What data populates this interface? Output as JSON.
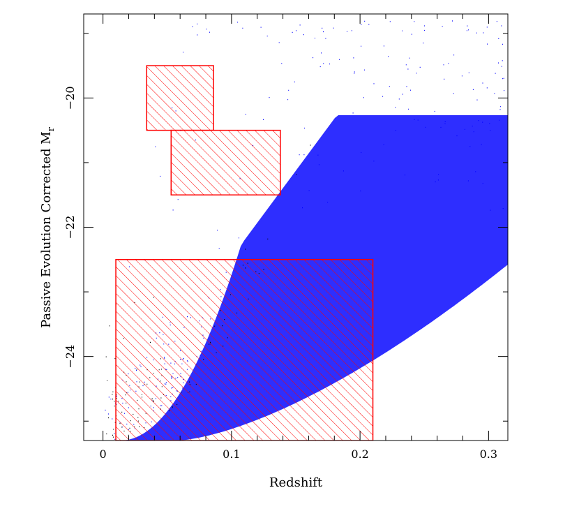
{
  "chart_data": {
    "type": "scatter",
    "title": "",
    "xlabel": "Redshift",
    "ylabel_main": "Passive Evolution Corrected M",
    "ylabel_sub": "r",
    "xlim": [
      -0.015,
      0.315
    ],
    "ylim": [
      -18.7,
      -25.3
    ],
    "x_ticks": [
      0,
      0.1,
      0.2,
      0.3
    ],
    "x_tick_labels": [
      "0",
      "0.1",
      "0.2",
      "0.3"
    ],
    "y_ticks": [
      -20,
      -22,
      -24
    ],
    "y_tick_labels": [
      "−20",
      "−22",
      "−24"
    ],
    "series": [
      {
        "color": "#0000ff",
        "description": "dense blue scatter cloud"
      },
      {
        "color": "#000000",
        "description": "black scatter points at faint magnitudes / low redshift"
      }
    ],
    "regions": [
      {
        "x": [
          0.01,
          0.21
        ],
        "y": [
          -22.5,
          -25.3
        ],
        "color": "#ff0000",
        "hatch": "diagonal"
      },
      {
        "x": [
          0.053,
          0.138
        ],
        "y": [
          -20.5,
          -21.5
        ],
        "color": "#ff0000",
        "hatch": "diagonal"
      },
      {
        "x": [
          0.034,
          0.086
        ],
        "y": [
          -19.5,
          -20.5
        ],
        "color": "#ff0000",
        "hatch": "diagonal"
      }
    ],
    "grid": false,
    "legend": "none"
  }
}
